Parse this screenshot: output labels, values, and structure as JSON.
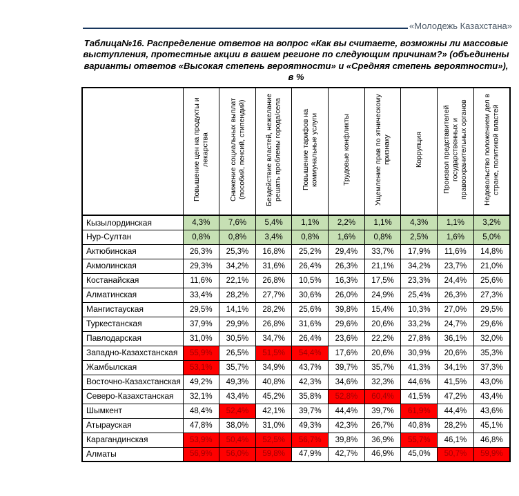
{
  "header": {
    "publication": "«Молодежь Казахстана»"
  },
  "caption": "Таблица№16. Распределение ответов на вопрос «Как вы считаете, возможны ли массовые выступления, протестные акции в вашем регионе по следующим причинам?» (объединены варианты ответов «Высокая степень вероятности» и «Средняя степень вероятности»), в %",
  "colors": {
    "rule_line": "#17365d",
    "publication_text": "#4e5b68",
    "green_highlight_bg": "#c6e0b4",
    "red_highlight_bg": "#ff0000",
    "red_highlight_text": "#a00000",
    "border": "#000000"
  },
  "table": {
    "columns": [
      "Повышение цен на продукты и лекарства",
      "Снижение социальных выплат (пособий, пенсий, стипендий)",
      "Бездействие властей, нежелание решать проблемы города/села",
      "Повышение тарифов на коммунальные услуги",
      "Трудовые конфликты",
      "Ущемление прав по этническому признаку",
      "Коррупция",
      "Произвол представителей государственных и правоохранительных органов",
      "Недовольство положением дел в стране, политикой властей"
    ],
    "rows": [
      {
        "region": "Кызылординская",
        "values": [
          "4,3%",
          "7,6%",
          "5,4%",
          "1,1%",
          "2,2%",
          "1,1%",
          "4,3%",
          "1,1%",
          "3,2%"
        ],
        "highlights": [
          "g",
          "g",
          "g",
          "g",
          "g",
          "g",
          "g",
          "g",
          "g"
        ]
      },
      {
        "region": "Нур-Султан",
        "values": [
          "0,8%",
          "0,8%",
          "3,4%",
          "0,8%",
          "1,6%",
          "0,8%",
          "2,5%",
          "1,6%",
          "5,0%"
        ],
        "highlights": [
          "g",
          "g",
          "g",
          "g",
          "g",
          "g",
          "g",
          "g",
          "g"
        ]
      },
      {
        "region": "Актюбинская",
        "values": [
          "26,3%",
          "25,3%",
          "16,8%",
          "25,2%",
          "29,4%",
          "33,7%",
          "17,9%",
          "11,6%",
          "14,8%"
        ],
        "highlights": [
          "n",
          "n",
          "n",
          "n",
          "n",
          "n",
          "n",
          "n",
          "n"
        ]
      },
      {
        "region": "Акмолинская",
        "values": [
          "29,3%",
          "34,2%",
          "31,6%",
          "26,4%",
          "26,3%",
          "21,1%",
          "34,2%",
          "23,7%",
          "21,0%"
        ],
        "highlights": [
          "n",
          "n",
          "n",
          "n",
          "n",
          "n",
          "n",
          "n",
          "n"
        ]
      },
      {
        "region": "Костанайская",
        "values": [
          "11,6%",
          "22,1%",
          "26,8%",
          "10,5%",
          "16,3%",
          "17,5%",
          "23,3%",
          "24,4%",
          "25,6%"
        ],
        "highlights": [
          "n",
          "n",
          "n",
          "n",
          "n",
          "n",
          "n",
          "n",
          "n"
        ]
      },
      {
        "region": "Алматинская",
        "values": [
          "33,4%",
          "28,2%",
          "27,7%",
          "30,6%",
          "26,0%",
          "24,9%",
          "25,4%",
          "26,3%",
          "27,3%"
        ],
        "highlights": [
          "n",
          "n",
          "n",
          "n",
          "n",
          "n",
          "n",
          "n",
          "n"
        ]
      },
      {
        "region": "Мангистауская",
        "values": [
          "29,5%",
          "14,1%",
          "28,2%",
          "25,6%",
          "39,8%",
          "15,4%",
          "10,3%",
          "27,0%",
          "29,5%"
        ],
        "highlights": [
          "n",
          "n",
          "n",
          "n",
          "n",
          "n",
          "n",
          "n",
          "n"
        ]
      },
      {
        "region": "Туркестанская",
        "values": [
          "37,9%",
          "29,9%",
          "26,8%",
          "31,6%",
          "29,6%",
          "20,6%",
          "33,2%",
          "24,7%",
          "29,6%"
        ],
        "highlights": [
          "n",
          "n",
          "n",
          "n",
          "n",
          "n",
          "n",
          "n",
          "n"
        ]
      },
      {
        "region": "Павлодарская",
        "values": [
          "31,0%",
          "30,5%",
          "34,7%",
          "26,4%",
          "23,6%",
          "22,2%",
          "27,8%",
          "36,1%",
          "32,0%"
        ],
        "highlights": [
          "n",
          "n",
          "n",
          "n",
          "n",
          "n",
          "n",
          "n",
          "n"
        ]
      },
      {
        "region": "Западно-Казахстанская",
        "values": [
          "55,9%",
          "26,5%",
          "51,5%",
          "54,4%",
          "17,6%",
          "20,6%",
          "30,9%",
          "20,6%",
          "35,3%"
        ],
        "highlights": [
          "r",
          "n",
          "r",
          "r",
          "n",
          "n",
          "n",
          "n",
          "n"
        ]
      },
      {
        "region": "Жамбылская",
        "values": [
          "53,1%",
          "35,7%",
          "34,9%",
          "43,7%",
          "39,7%",
          "35,7%",
          "41,3%",
          "34,1%",
          "37,3%"
        ],
        "highlights": [
          "r",
          "n",
          "n",
          "n",
          "n",
          "n",
          "n",
          "n",
          "n"
        ]
      },
      {
        "region": "Восточно-Казахстанская",
        "values": [
          "49,2%",
          "49,3%",
          "40,8%",
          "42,3%",
          "34,6%",
          "32,3%",
          "44,6%",
          "41,5%",
          "43,0%"
        ],
        "highlights": [
          "n",
          "n",
          "n",
          "n",
          "n",
          "n",
          "n",
          "n",
          "n"
        ]
      },
      {
        "region": "Северо-Казахстанская",
        "values": [
          "32,1%",
          "43,4%",
          "45,2%",
          "35,8%",
          "52,8%",
          "60,4%",
          "41,5%",
          "47,2%",
          "43,4%"
        ],
        "highlights": [
          "n",
          "n",
          "n",
          "n",
          "r",
          "r",
          "n",
          "n",
          "n"
        ]
      },
      {
        "region": "Шымкент",
        "values": [
          "48,4%",
          "52,4%",
          "42,1%",
          "39,7%",
          "44,4%",
          "39,7%",
          "61,9%",
          "44,4%",
          "43,6%"
        ],
        "highlights": [
          "n",
          "r",
          "n",
          "n",
          "n",
          "n",
          "r",
          "n",
          "n"
        ]
      },
      {
        "region": "Атырауская",
        "values": [
          "47,8%",
          "38,0%",
          "31,0%",
          "49,3%",
          "42,3%",
          "26,7%",
          "40,8%",
          "28,2%",
          "45,1%"
        ],
        "highlights": [
          "n",
          "n",
          "n",
          "n",
          "n",
          "n",
          "n",
          "n",
          "n"
        ]
      },
      {
        "region": "Карагандинская",
        "values": [
          "53,9%",
          "50,4%",
          "52,5%",
          "56,7%",
          "39,8%",
          "36,9%",
          "55,7%",
          "46,1%",
          "46,8%"
        ],
        "highlights": [
          "r",
          "r",
          "r",
          "r",
          "n",
          "n",
          "r",
          "n",
          "n"
        ]
      },
      {
        "region": "Алматы",
        "values": [
          "56,9%",
          "56,0%",
          "59,8%",
          "47,9%",
          "42,7%",
          "46,9%",
          "45,0%",
          "50,7%",
          "59,9%"
        ],
        "highlights": [
          "r",
          "r",
          "r",
          "n",
          "n",
          "n",
          "n",
          "r",
          "r"
        ]
      }
    ]
  }
}
